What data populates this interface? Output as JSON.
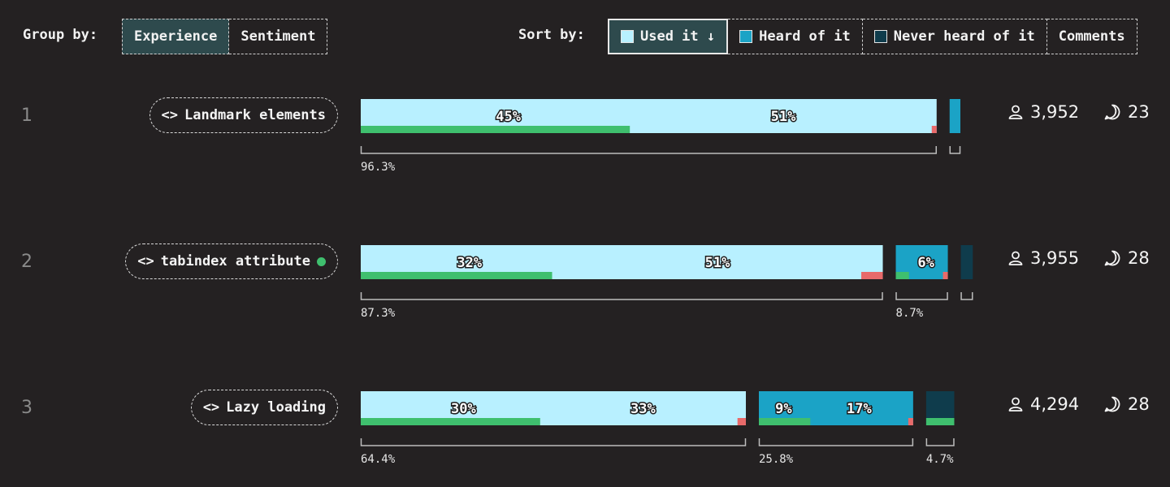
{
  "toolbar": {
    "group_label": "Group by:",
    "group_options": [
      "Experience",
      "Sentiment"
    ],
    "group_active": 0,
    "sort_label": "Sort by:",
    "sort_options": [
      {
        "label": "Used it ↓",
        "color": "#b8f0ff"
      },
      {
        "label": "Heard of it",
        "color": "#1ba3c6"
      },
      {
        "label": "Never heard of it",
        "color": "#0f3c4c"
      },
      {
        "label": "Comments",
        "color": null
      }
    ],
    "sort_active": 0
  },
  "colors": {
    "used": "#b8f0ff",
    "heard": "#1ba3c6",
    "never": "#0f3c4c",
    "positive": "#3fbf6e",
    "negative": "#e86a6a"
  },
  "chart_data": {
    "type": "bar",
    "series_names": [
      "Used it",
      "Heard of it",
      "Never heard of it"
    ],
    "rows": [
      {
        "rank": "1",
        "label": "Landmark elements",
        "code_icon": "<>",
        "has_dot": false,
        "respondents": "3,952",
        "comments": "23",
        "used": {
          "total": 96.3,
          "total_label": "96.3%",
          "labels": [
            "45%",
            "51%"
          ],
          "positive": 45,
          "negative": 0.5
        },
        "heard": {
          "total": 1.8,
          "total_label": "",
          "labels": [],
          "positive": 0,
          "negative": 0
        },
        "never": {
          "total": 0,
          "total_label": "",
          "labels": [],
          "positive": 0,
          "negative": 0
        }
      },
      {
        "rank": "2",
        "label": "tabindex attribute",
        "code_icon": "<>",
        "has_dot": true,
        "respondents": "3,955",
        "comments": "28",
        "used": {
          "total": 87.3,
          "total_label": "87.3%",
          "labels": [
            "32%",
            "51%"
          ],
          "positive": 32,
          "negative": 3.6
        },
        "heard": {
          "total": 8.7,
          "total_label": "8.7%",
          "labels": [
            "6%"
          ],
          "positive": 2.2,
          "negative": 0.4
        },
        "never": {
          "total": 2,
          "total_label": "",
          "labels": [],
          "positive": 0,
          "negative": 0
        }
      },
      {
        "rank": "3",
        "label": "Lazy loading",
        "code_icon": "<>",
        "has_dot": false,
        "respondents": "4,294",
        "comments": "28",
        "used": {
          "total": 64.4,
          "total_label": "64.4%",
          "labels": [
            "30%",
            "33%"
          ],
          "positive": 30,
          "negative": 1.4
        },
        "heard": {
          "total": 25.8,
          "total_label": "25.8%",
          "labels": [
            "9%",
            "17%"
          ],
          "positive": 8.6,
          "negative": 0.5
        },
        "never": {
          "total": 4.7,
          "total_label": "4.7%",
          "labels": [],
          "positive": 4.7,
          "negative": 0
        }
      }
    ]
  }
}
